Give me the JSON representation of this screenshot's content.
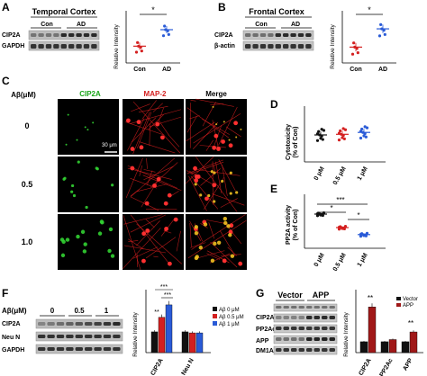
{
  "panels": {
    "A": {
      "letter": "A",
      "title": "Temporal Cortex",
      "group_con": "Con",
      "group_ad": "AD",
      "blot_rows": [
        "CIP2A",
        "GAPDH"
      ],
      "chart_ylabel": "Relative Intensity",
      "categories": [
        "Con",
        "AD"
      ],
      "star": "*"
    },
    "B": {
      "letter": "B",
      "title": "Frontal Cortex",
      "group_con": "Con",
      "group_ad": "AD",
      "blot_rows": [
        "CIP2A",
        "β-actin"
      ],
      "chart_ylabel": "Relative Intensity",
      "categories": [
        "Con",
        "AD"
      ],
      "star": "*"
    },
    "C": {
      "letter": "C",
      "row_header": "Aβ(μM)",
      "col_headers": [
        "CIP2A",
        "MAP-2",
        "Merge"
      ],
      "rows": [
        "0",
        "0.5",
        "1.0"
      ],
      "scale_bar": "30 μm"
    },
    "D": {
      "letter": "D",
      "ylabel": "Cytotoxicity",
      "ylabel2": "(% of Con)",
      "categories": [
        "0 μM",
        "0.5 μM",
        "1 μM"
      ]
    },
    "E": {
      "letter": "E",
      "ylabel": "PP2A activity",
      "ylabel2": "(% of Con)",
      "categories": [
        "0 μM",
        "0.5 μM",
        "1 μM"
      ],
      "stars": [
        "***",
        "*",
        "*"
      ]
    },
    "F": {
      "letter": "F",
      "row_header": "Aβ(μM)",
      "conc": [
        "0",
        "0.5",
        "1"
      ],
      "blot_rows": [
        "CIP2A",
        "Neu N",
        "GAPDH"
      ],
      "chart_ylabel": "Relative Intensity",
      "categories": [
        "CIP2A",
        "Neu N"
      ],
      "legend": [
        "Aβ 0 μM",
        "Aβ 0.5 μM",
        "Aβ 1 μM"
      ],
      "stars": [
        "***",
        "***",
        "**"
      ]
    },
    "G": {
      "letter": "G",
      "group_vector": "Vector",
      "group_app": "APP",
      "blot_rows": [
        "CIP2A",
        "PP2Ac",
        "APP",
        "DM1A"
      ],
      "chart_ylabel": "Relative Intensity",
      "categories": [
        "CIP2A",
        "PP2Ac",
        "APP"
      ],
      "legend": [
        "Vector",
        "APP"
      ],
      "stars": [
        "**",
        "**"
      ]
    }
  },
  "colors": {
    "red": "#d42020",
    "blue": "#2a5bd7",
    "black": "#111111",
    "darkred": "#a01818"
  },
  "chart_data": [
    {
      "type": "scatter",
      "panel": "A",
      "categories": [
        "Con",
        "AD"
      ],
      "series": [
        {
          "values": [
            1.0,
            2.1
          ]
        }
      ],
      "ylabel": "Relative Intensity"
    },
    {
      "type": "scatter",
      "panel": "B",
      "categories": [
        "Con",
        "AD"
      ],
      "series": [
        {
          "values": [
            1.0,
            2.3
          ]
        }
      ],
      "ylabel": "Relative Intensity"
    },
    {
      "type": "scatter",
      "panel": "D",
      "categories": [
        "0 μM",
        "0.5 μM",
        "1 μM"
      ],
      "series": [
        {
          "values": [
            100,
            101,
            104
          ]
        }
      ],
      "ylabel": "Cytotoxicity (% of Con)"
    },
    {
      "type": "scatter",
      "panel": "E",
      "categories": [
        "0 μM",
        "0.5 μM",
        "1 μM"
      ],
      "series": [
        {
          "values": [
            100,
            75,
            62
          ]
        }
      ],
      "ylabel": "PP2A activity (% of Con)"
    },
    {
      "type": "bar",
      "panel": "F",
      "categories": [
        "CIP2A",
        "Neu N"
      ],
      "series": [
        {
          "name": "Aβ 0 μM",
          "values": [
            1.0,
            1.0
          ]
        },
        {
          "name": "Aβ 0.5 μM",
          "values": [
            1.7,
            0.95
          ]
        },
        {
          "name": "Aβ 1 μM",
          "values": [
            2.3,
            0.95
          ]
        }
      ],
      "ylabel": "Relative Intensity"
    },
    {
      "type": "bar",
      "panel": "G",
      "categories": [
        "CIP2A",
        "PP2Ac",
        "APP"
      ],
      "series": [
        {
          "name": "Vector",
          "values": [
            1.0,
            1.0,
            1.0
          ]
        },
        {
          "name": "APP",
          "values": [
            4.2,
            1.2,
            1.9
          ]
        }
      ],
      "ylabel": "Relative Intensity"
    }
  ]
}
